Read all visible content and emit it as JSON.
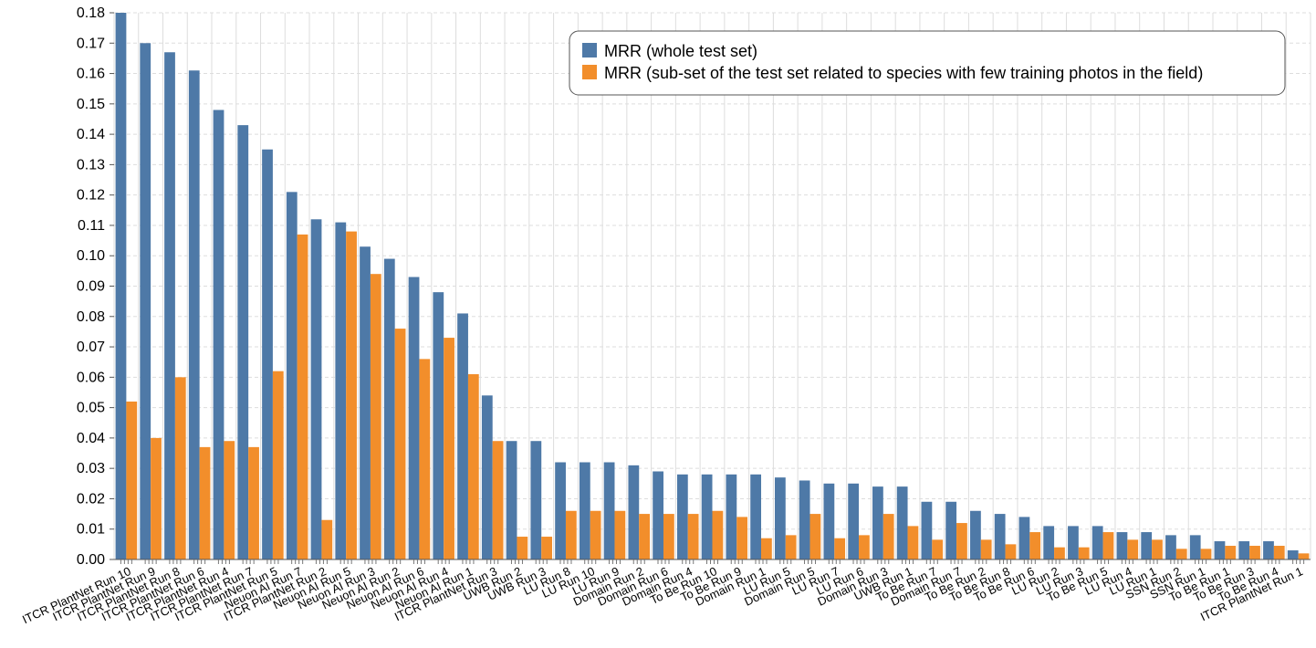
{
  "chart_data": {
    "type": "bar",
    "title": "",
    "xlabel": "",
    "ylabel": "",
    "ylim": [
      0,
      0.18
    ],
    "yticks": [
      "0.00",
      "0.01",
      "0.02",
      "0.03",
      "0.04",
      "0.05",
      "0.06",
      "0.07",
      "0.08",
      "0.09",
      "0.10",
      "0.11",
      "0.12",
      "0.13",
      "0.14",
      "0.15",
      "0.16",
      "0.17",
      "0.18"
    ],
    "legend_position": "top-right",
    "grid": true,
    "categories": [
      "ITCR PlantNet Run 10",
      "ITCR PlantNet Run 9",
      "ITCR PlantNet Run 8",
      "ITCR PlantNet Run 6",
      "ITCR PlantNet Run 4",
      "ITCR PlantNet Run 7",
      "ITCR PlantNet Run 5",
      "Neuon AI Run 7",
      "ITCR PlantNet Run 2",
      "Neuon AI Run 5",
      "Neuon AI Run 3",
      "Neuon AI Run 2",
      "Neuon AI Run 6",
      "Neuon AI Run 4",
      "Neuon AI Run 1",
      "ITCR PlantNet Run 3",
      "UWB Run 2",
      "UWB Run 3",
      "LU Run 8",
      "LU Run 10",
      "LU Run 9",
      "Domain Run 2",
      "Domain Run 6",
      "Domain Run 4",
      "To Be Run 10",
      "To Be Run 9",
      "Domain Run 1",
      "LU Run 5",
      "Domain Run 5",
      "LU Run 7",
      "LU Run 6",
      "Domain Run 3",
      "UWB Run 1",
      "To Be Run 7",
      "Domain Run 7",
      "To Be Run 2",
      "To Be Run 8",
      "To Be Run 6",
      "LU Run 2",
      "LU Run 3",
      "To Be Run 5",
      "LU Run 4",
      "LU Run 1",
      "SSN Run 2",
      "SSN Run 1",
      "To Be Run 1",
      "To Be Run 3",
      "To Be Run 4",
      "ITCR PlantNet Run 1"
    ],
    "series": [
      {
        "name": "MRR (whole test set)",
        "color": "#4e79a7",
        "values": [
          0.18,
          0.17,
          0.167,
          0.161,
          0.148,
          0.143,
          0.135,
          0.121,
          0.112,
          0.111,
          0.103,
          0.099,
          0.093,
          0.088,
          0.081,
          0.054,
          0.039,
          0.039,
          0.032,
          0.032,
          0.032,
          0.031,
          0.029,
          0.028,
          0.028,
          0.028,
          0.028,
          0.027,
          0.026,
          0.025,
          0.025,
          0.024,
          0.024,
          0.019,
          0.019,
          0.016,
          0.015,
          0.014,
          0.011,
          0.011,
          0.011,
          0.009,
          0.009,
          0.008,
          0.008,
          0.006,
          0.006,
          0.006,
          0.003
        ]
      },
      {
        "name": "MRR (sub-set of the test set related to species with few training photos in the field)",
        "color": "#f28e2b",
        "values": [
          0.052,
          0.04,
          0.06,
          0.037,
          0.039,
          0.037,
          0.062,
          0.107,
          0.013,
          0.108,
          0.094,
          0.076,
          0.066,
          0.073,
          0.061,
          0.039,
          0.0075,
          0.0075,
          0.016,
          0.016,
          0.016,
          0.015,
          0.015,
          0.015,
          0.016,
          0.014,
          0.007,
          0.008,
          0.015,
          0.007,
          0.008,
          0.015,
          0.011,
          0.0065,
          0.012,
          0.0065,
          0.005,
          0.009,
          0.004,
          0.004,
          0.009,
          0.0065,
          0.0065,
          0.0035,
          0.0035,
          0.0045,
          0.0045,
          0.0045,
          0.002
        ]
      }
    ]
  }
}
